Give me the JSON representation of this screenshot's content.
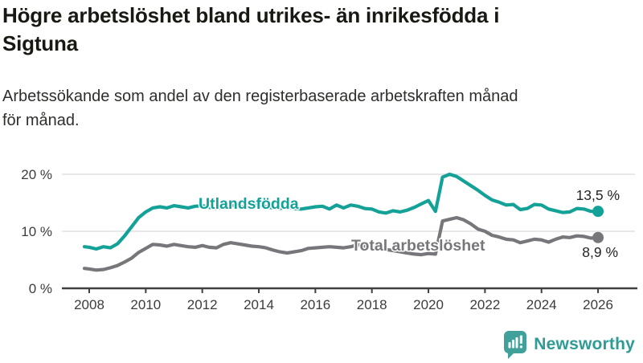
{
  "header": {
    "title_line1": "Högre arbetslöshet bland utrikes- än inrikesfödda i",
    "title_line2": "Sigtuna",
    "subtitle_line1": "Arbetssökande som andel av den registerbaserade arbetskraften månad",
    "subtitle_line2": "för månad."
  },
  "footer": {
    "brand_name": "Newsworthy",
    "logo_icon": "newsworthy-speech-bubble-bar-chart-icon",
    "brand_color": "#2e9c96",
    "icon_color": "#40a19a"
  },
  "colors": {
    "background": "#ffffff",
    "title": "#191914",
    "subtitle": "#2e2e2c",
    "accent_teal": "#14a298",
    "neutral_gray": "#77777b"
  },
  "chart_data": {
    "type": "line",
    "title": "Högre arbetslöshet bland utrikes- än inrikesfödda i Sigtuna",
    "subtitle": "Arbetssökande som andel av den registerbaserade arbetskraften månad för månad.",
    "xlabel": "",
    "ylabel": "",
    "ylim": [
      0,
      21
    ],
    "xlim": [
      2007.0,
      2027.3
    ],
    "grid": "horizontal",
    "legend_position": "inline-labels",
    "axis_color": "#404040",
    "grid_color": "#dadada",
    "x": [
      2007.83,
      2008.0,
      2008.25,
      2008.5,
      2008.75,
      2009.0,
      2009.25,
      2009.5,
      2009.75,
      2010.0,
      2010.25,
      2010.5,
      2010.75,
      2011.0,
      2011.25,
      2011.5,
      2011.75,
      2012.0,
      2012.25,
      2012.5,
      2012.75,
      2013.0,
      2013.25,
      2013.5,
      2013.75,
      2014.0,
      2014.25,
      2014.5,
      2014.75,
      2015.0,
      2015.25,
      2015.5,
      2015.75,
      2016.0,
      2016.25,
      2016.5,
      2016.75,
      2017.0,
      2017.25,
      2017.5,
      2017.75,
      2018.0,
      2018.25,
      2018.5,
      2018.75,
      2019.0,
      2019.25,
      2019.5,
      2019.75,
      2020.0,
      2020.25,
      2020.5,
      2020.75,
      2021.0,
      2021.25,
      2021.5,
      2021.75,
      2022.0,
      2022.25,
      2022.5,
      2022.75,
      2023.0,
      2023.25,
      2023.5,
      2023.75,
      2024.0,
      2024.25,
      2024.5,
      2024.75,
      2025.0,
      2025.25,
      2025.5,
      2025.75,
      2026.0
    ],
    "series": [
      {
        "id": "utlandsfodda",
        "name": "Utlandsfödda",
        "color": "#14a298",
        "end_label": "13,5 %",
        "end_value": 13.5,
        "values": [
          7.3,
          7.2,
          6.9,
          7.3,
          7.1,
          7.8,
          9.2,
          10.8,
          12.4,
          13.4,
          14.1,
          14.3,
          14.1,
          14.5,
          14.3,
          14.1,
          14.4,
          14.5,
          14.2,
          14.0,
          14.3,
          14.6,
          14.4,
          14.2,
          14.5,
          14.6,
          14.3,
          14.1,
          14.0,
          14.2,
          14.0,
          13.9,
          14.1,
          14.3,
          14.4,
          13.9,
          14.6,
          14.1,
          14.6,
          14.4,
          14.0,
          13.9,
          13.4,
          13.2,
          13.6,
          13.4,
          13.7,
          14.2,
          14.8,
          15.4,
          13.5,
          19.5,
          20.0,
          19.6,
          18.8,
          18.0,
          17.2,
          16.3,
          15.5,
          15.1,
          14.6,
          14.7,
          13.8,
          14.0,
          14.7,
          14.6,
          13.9,
          13.6,
          13.3,
          13.4,
          14.0,
          13.9,
          13.5,
          13.5
        ]
      },
      {
        "id": "total-arbetsloshet",
        "name": "Total arbetslöshet",
        "color": "#77777b",
        "end_label": "8,9 %",
        "end_value": 8.9,
        "values": [
          3.5,
          3.4,
          3.2,
          3.3,
          3.6,
          4.0,
          4.6,
          5.3,
          6.3,
          7.0,
          7.7,
          7.6,
          7.4,
          7.7,
          7.5,
          7.3,
          7.2,
          7.5,
          7.2,
          7.1,
          7.7,
          8.0,
          7.8,
          7.6,
          7.4,
          7.3,
          7.1,
          6.7,
          6.4,
          6.2,
          6.4,
          6.6,
          7.0,
          7.1,
          7.2,
          7.3,
          7.2,
          7.1,
          7.3,
          7.6,
          7.4,
          7.2,
          7.0,
          6.8,
          6.6,
          6.4,
          6.2,
          6.0,
          5.9,
          6.1,
          6.0,
          11.8,
          12.1,
          12.4,
          12.0,
          11.3,
          10.4,
          10.0,
          9.3,
          9.0,
          8.6,
          8.5,
          8.0,
          8.3,
          8.6,
          8.5,
          8.1,
          8.6,
          9.0,
          8.9,
          9.2,
          9.1,
          8.8,
          8.9
        ]
      }
    ],
    "xticks": [
      {
        "value": 2008,
        "label": "2008"
      },
      {
        "value": 2010,
        "label": "2010"
      },
      {
        "value": 2012,
        "label": "2012"
      },
      {
        "value": 2014,
        "label": "2014"
      },
      {
        "value": 2016,
        "label": "2016"
      },
      {
        "value": 2018,
        "label": "2018"
      },
      {
        "value": 2020,
        "label": "2020"
      },
      {
        "value": 2022,
        "label": "2022"
      },
      {
        "value": 2024,
        "label": "2024"
      },
      {
        "value": 2026,
        "label": "2026"
      }
    ],
    "yticks": [
      {
        "value": 0,
        "label": "0 %"
      },
      {
        "value": 10,
        "label": "10 %"
      },
      {
        "value": 20,
        "label": "20 %"
      }
    ]
  }
}
